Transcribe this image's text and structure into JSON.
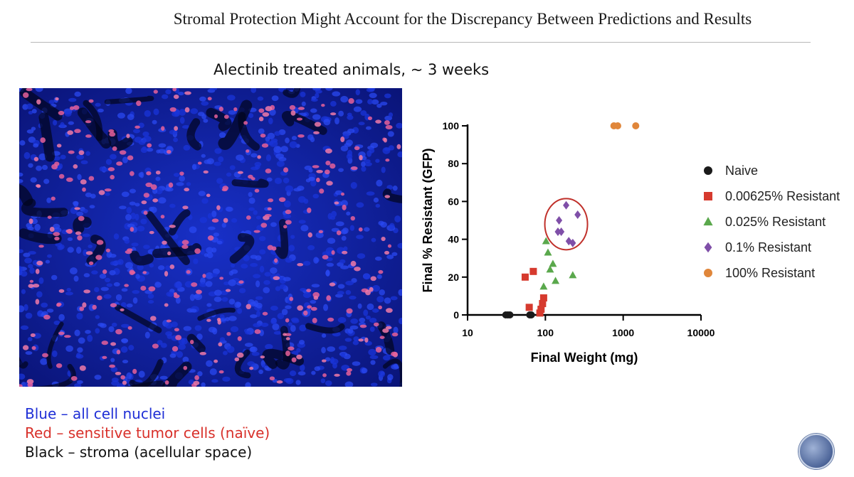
{
  "slide": {
    "title": "Stromal Protection Might Account for the Discrepancy Between Predictions and Results",
    "subtitle": "Alectinib treated animals, ~ 3 weeks",
    "legend_lines": {
      "blue": "Blue – all cell nuclei",
      "red": "Red – sensitive tumor cells (naïve)",
      "black": "Black – stroma (acellular space)"
    }
  },
  "chart_data": {
    "type": "scatter",
    "xlabel": "Final Weight (mg)",
    "ylabel": "Final % Resistant (GFP)",
    "xscale": "log",
    "xlim": [
      10,
      10000
    ],
    "ylim": [
      0,
      100
    ],
    "xticks": [
      10,
      100,
      1000,
      10000
    ],
    "xtick_labels": [
      "10",
      "100",
      "1000",
      "10000"
    ],
    "yticks": [
      0,
      20,
      40,
      60,
      80,
      100
    ],
    "ytick_labels": [
      "0",
      "20",
      "40",
      "60",
      "80",
      "100"
    ],
    "legend_position": "right",
    "series": [
      {
        "name": "Naive",
        "marker": "circle",
        "color": "#1a1a1a",
        "x": [
          31,
          33,
          35,
          63,
          66
        ],
        "y": [
          0,
          0,
          0,
          0,
          0
        ]
      },
      {
        "name": "0.00625% Resistant",
        "marker": "square",
        "color": "#d63a2e",
        "x": [
          55,
          62,
          70,
          85,
          88,
          92,
          95
        ],
        "y": [
          20,
          4,
          23,
          1,
          3,
          6,
          9
        ]
      },
      {
        "name": "0.025% Resistant",
        "marker": "triangle",
        "color": "#5aa84c",
        "x": [
          95,
          102,
          108,
          115,
          125,
          135,
          225
        ],
        "y": [
          15,
          39,
          33,
          24,
          27,
          18,
          21
        ]
      },
      {
        "name": "0.1% Resistant",
        "marker": "diamond",
        "color": "#7f4fa8",
        "x": [
          145,
          150,
          160,
          185,
          200,
          225,
          260
        ],
        "y": [
          44,
          50,
          44,
          58,
          39,
          38,
          53
        ]
      },
      {
        "name": "100% Resistant",
        "marker": "circle",
        "color": "#e0863a",
        "x": [
          760,
          850,
          1450
        ],
        "y": [
          100,
          100,
          100
        ]
      }
    ],
    "annotation": {
      "type": "ellipse",
      "color": "#c0302a",
      "center": [
        185,
        48
      ],
      "label": "0.1% Resistant group circled"
    }
  }
}
